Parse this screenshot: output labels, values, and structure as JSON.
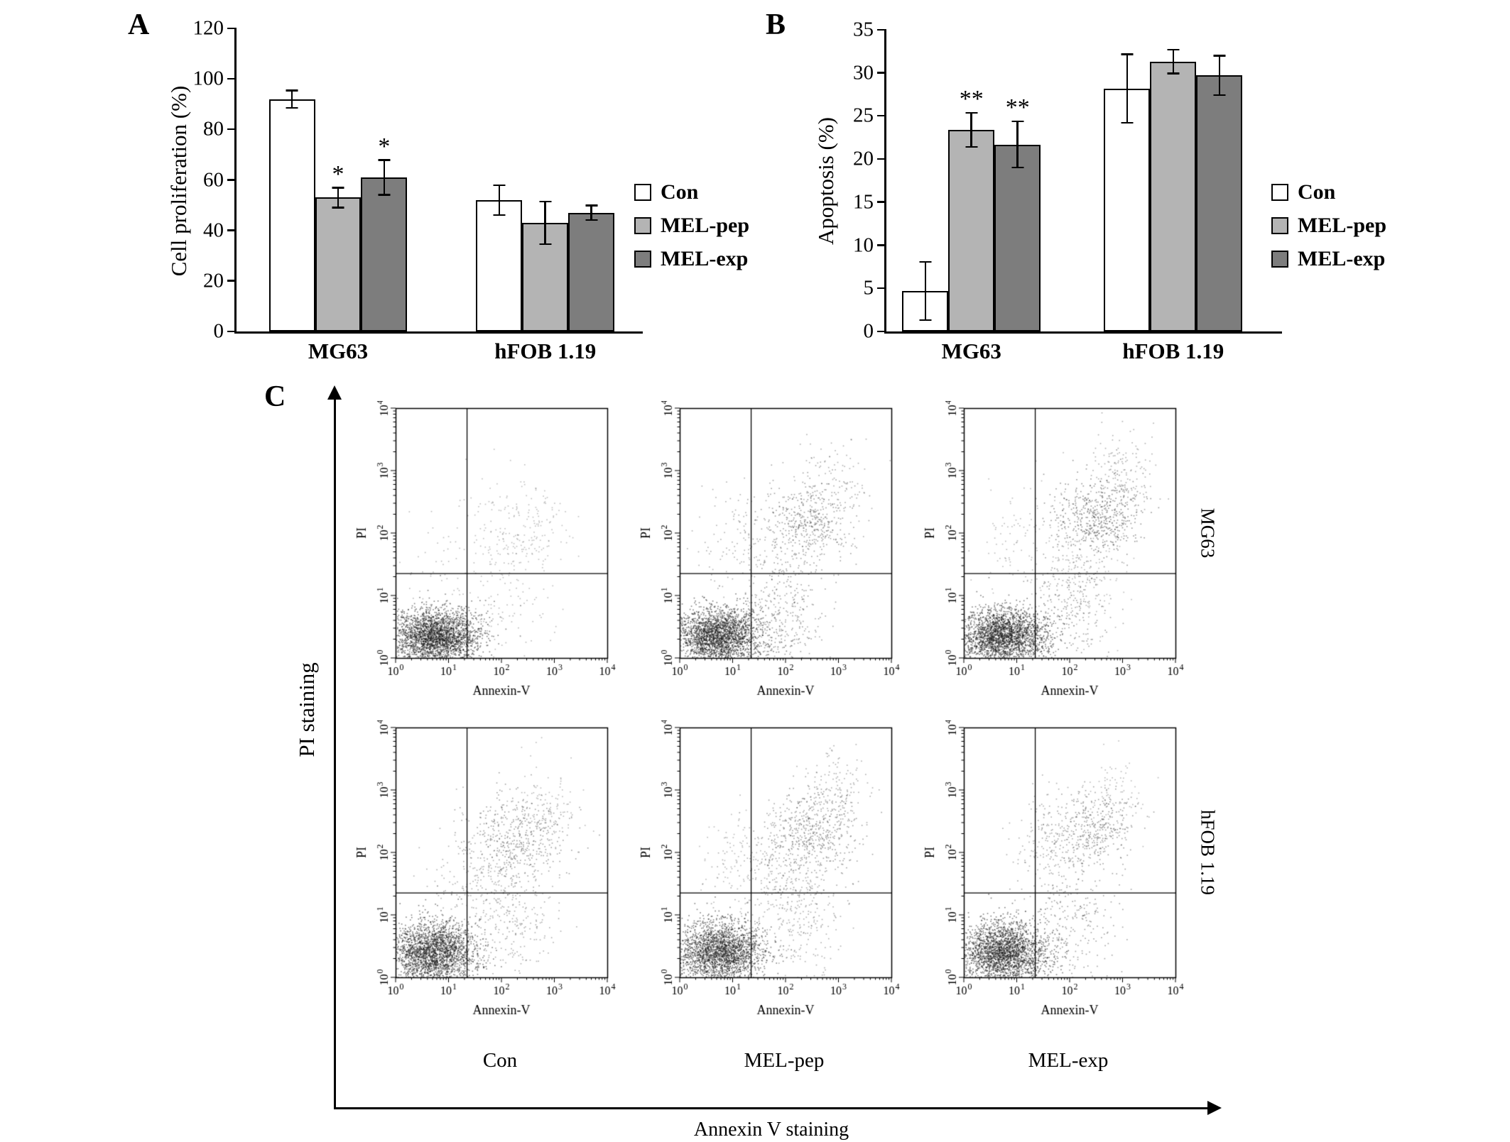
{
  "figure": {
    "panels": {
      "a": "A",
      "b": "B",
      "c": "C"
    }
  },
  "legend": {
    "items": [
      {
        "label": "Con",
        "color": "#ffffff"
      },
      {
        "label": "MEL-pep",
        "color": "#b4b4b4"
      },
      {
        "label": "MEL-exp",
        "color": "#7d7d7d"
      }
    ]
  },
  "chart_data": [
    {
      "id": "cell-proliferation",
      "type": "bar",
      "ylabel": "Cell proliferation (%)",
      "ylim": [
        0,
        120
      ],
      "ytick_step": 20,
      "categories": [
        "MG63",
        "hFOB 1.19"
      ],
      "series": [
        {
          "name": "Con",
          "color": "#ffffff",
          "values": [
            92,
            52
          ],
          "errors": [
            3.5,
            6
          ],
          "sig": [
            "",
            ""
          ]
        },
        {
          "name": "MEL-pep",
          "color": "#b4b4b4",
          "values": [
            53,
            43
          ],
          "errors": [
            4,
            8.5
          ],
          "sig": [
            "*",
            ""
          ]
        },
        {
          "name": "MEL-exp",
          "color": "#7d7d7d",
          "values": [
            61,
            47
          ],
          "errors": [
            7,
            3
          ],
          "sig": [
            "*",
            ""
          ]
        }
      ]
    },
    {
      "id": "apoptosis",
      "type": "bar",
      "ylabel": "Apoptosis (%)",
      "ylim": [
        0,
        35
      ],
      "ytick_step": 5,
      "categories": [
        "MG63",
        "hFOB 1.19"
      ],
      "series": [
        {
          "name": "Con",
          "color": "#ffffff",
          "values": [
            4.7,
            28.2
          ],
          "errors": [
            3.4,
            4.0
          ],
          "sig": [
            "",
            ""
          ]
        },
        {
          "name": "MEL-pep",
          "color": "#b4b4b4",
          "values": [
            23.4,
            31.3
          ],
          "errors": [
            2.0,
            1.4
          ],
          "sig": [
            "**",
            ""
          ]
        },
        {
          "name": "MEL-exp",
          "color": "#7d7d7d",
          "values": [
            21.7,
            29.7
          ],
          "errors": [
            2.7,
            2.3
          ],
          "sig": [
            "**",
            ""
          ]
        }
      ]
    },
    {
      "id": "flow-cytometry",
      "type": "scatter",
      "xlabel": "Annexin V staining",
      "ylabel": "PI staining",
      "plot_xlabel": "Annexin-V",
      "plot_ylabel": "PI",
      "tick_exponents": [
        0,
        1,
        2,
        3,
        4
      ],
      "axis_range_log10": [
        0,
        4
      ],
      "rows": [
        "MG63",
        "hFOB 1.19"
      ],
      "columns": [
        "Con",
        "MEL-pep",
        "MEL-exp"
      ],
      "quadrant": {
        "x": 1.35,
        "y": 1.35
      },
      "plots": [
        {
          "row": "MG63",
          "column": "Con",
          "seed": 11,
          "clusters": [
            {
              "x": 0.75,
              "y": 0.35,
              "sx": 0.4,
              "sy": 0.22,
              "n": 2600,
              "a": 0.55
            },
            {
              "x": 2.3,
              "y": 2.05,
              "sx": 0.45,
              "sy": 0.42,
              "n": 230,
              "a": 0.28
            },
            {
              "x": 1.15,
              "y": 1.15,
              "sx": 0.65,
              "sy": 0.55,
              "n": 110,
              "a": 0.3
            },
            {
              "x": 2.0,
              "y": 0.6,
              "sx": 0.5,
              "sy": 0.4,
              "n": 80,
              "a": 0.3
            }
          ]
        },
        {
          "row": "MG63",
          "column": "MEL-pep",
          "seed": 22,
          "clusters": [
            {
              "x": 0.7,
              "y": 0.35,
              "sx": 0.4,
              "sy": 0.23,
              "n": 2400,
              "a": 0.55
            },
            {
              "x": 2.45,
              "y": 2.15,
              "sx": 0.4,
              "sy": 0.35,
              "n": 420,
              "a": 0.4
            },
            {
              "x": 2.0,
              "y": 0.9,
              "sx": 0.35,
              "sy": 0.65,
              "n": 280,
              "a": 0.4
            },
            {
              "x": 1.2,
              "y": 1.9,
              "sx": 0.5,
              "sy": 0.45,
              "n": 130,
              "a": 0.35
            },
            {
              "x": 2.9,
              "y": 2.75,
              "sx": 0.35,
              "sy": 0.45,
              "n": 130,
              "a": 0.35
            },
            {
              "x": 1.5,
              "y": 0.5,
              "sx": 0.5,
              "sy": 0.35,
              "n": 150,
              "a": 0.35
            }
          ]
        },
        {
          "row": "MG63",
          "column": "MEL-exp",
          "seed": 33,
          "clusters": [
            {
              "x": 0.75,
              "y": 0.35,
              "sx": 0.42,
              "sy": 0.23,
              "n": 2500,
              "a": 0.55
            },
            {
              "x": 2.55,
              "y": 2.3,
              "sx": 0.4,
              "sy": 0.3,
              "n": 520,
              "a": 0.45
            },
            {
              "x": 3.0,
              "y": 2.95,
              "sx": 0.3,
              "sy": 0.4,
              "n": 150,
              "a": 0.35
            },
            {
              "x": 2.05,
              "y": 0.8,
              "sx": 0.35,
              "sy": 0.6,
              "n": 230,
              "a": 0.4
            },
            {
              "x": 1.15,
              "y": 1.85,
              "sx": 0.45,
              "sy": 0.5,
              "n": 110,
              "a": 0.3
            },
            {
              "x": 2.2,
              "y": 1.4,
              "sx": 0.4,
              "sy": 0.5,
              "n": 180,
              "a": 0.3
            }
          ]
        },
        {
          "row": "hFOB 1.19",
          "column": "Con",
          "seed": 44,
          "clusters": [
            {
              "x": 0.7,
              "y": 0.4,
              "sx": 0.4,
              "sy": 0.25,
              "n": 2400,
              "a": 0.55
            },
            {
              "x": 2.3,
              "y": 2.25,
              "sx": 0.45,
              "sy": 0.35,
              "n": 450,
              "a": 0.4
            },
            {
              "x": 1.65,
              "y": 1.55,
              "sx": 0.5,
              "sy": 0.5,
              "n": 260,
              "a": 0.35
            },
            {
              "x": 2.2,
              "y": 0.8,
              "sx": 0.4,
              "sy": 0.5,
              "n": 200,
              "a": 0.35
            },
            {
              "x": 2.85,
              "y": 2.8,
              "sx": 0.3,
              "sy": 0.35,
              "n": 110,
              "a": 0.3
            }
          ]
        },
        {
          "row": "hFOB 1.19",
          "column": "MEL-pep",
          "seed": 55,
          "clusters": [
            {
              "x": 0.75,
              "y": 0.4,
              "sx": 0.4,
              "sy": 0.25,
              "n": 2300,
              "a": 0.55
            },
            {
              "x": 2.5,
              "y": 2.3,
              "sx": 0.45,
              "sy": 0.35,
              "n": 500,
              "a": 0.4
            },
            {
              "x": 1.8,
              "y": 1.6,
              "sx": 0.5,
              "sy": 0.5,
              "n": 280,
              "a": 0.35
            },
            {
              "x": 2.95,
              "y": 2.95,
              "sx": 0.3,
              "sy": 0.35,
              "n": 150,
              "a": 0.35
            },
            {
              "x": 2.3,
              "y": 0.8,
              "sx": 0.45,
              "sy": 0.5,
              "n": 220,
              "a": 0.35
            },
            {
              "x": 1.1,
              "y": 1.9,
              "sx": 0.4,
              "sy": 0.4,
              "n": 90,
              "a": 0.3
            }
          ]
        },
        {
          "row": "hFOB 1.19",
          "column": "MEL-exp",
          "seed": 66,
          "clusters": [
            {
              "x": 0.75,
              "y": 0.4,
              "sx": 0.42,
              "sy": 0.25,
              "n": 2500,
              "a": 0.55
            },
            {
              "x": 1.55,
              "y": 2.2,
              "sx": 0.35,
              "sy": 0.35,
              "n": 180,
              "a": 0.35
            },
            {
              "x": 2.5,
              "y": 2.35,
              "sx": 0.38,
              "sy": 0.3,
              "n": 380,
              "a": 0.4
            },
            {
              "x": 2.1,
              "y": 0.9,
              "sx": 0.4,
              "sy": 0.6,
              "n": 260,
              "a": 0.4
            },
            {
              "x": 2.85,
              "y": 2.9,
              "sx": 0.28,
              "sy": 0.3,
              "n": 90,
              "a": 0.3
            }
          ]
        }
      ]
    }
  ]
}
